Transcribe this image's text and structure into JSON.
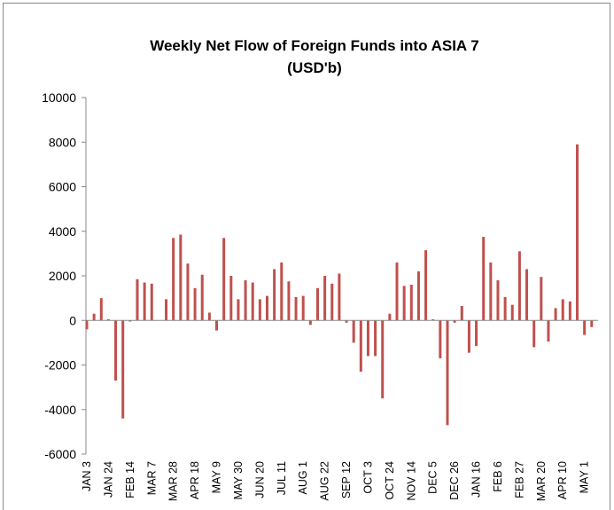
{
  "chart_data": {
    "type": "bar",
    "title": "Weekly Net Flow of Foreign Funds into ASIA 7",
    "subtitle": "(USD'b)",
    "color": "#c0504d",
    "categories": [
      "JAN 3",
      null,
      null,
      "JAN 24",
      null,
      null,
      "FEB 14",
      null,
      null,
      "MAR 7",
      null,
      null,
      "MAR 28",
      null,
      null,
      "APR 18",
      null,
      null,
      "MAY 9",
      null,
      null,
      "MAY 30",
      null,
      null,
      "JUN 20",
      null,
      null,
      "JUL 11",
      null,
      null,
      "AUG 1",
      null,
      null,
      "AUG 22",
      null,
      null,
      "SEP 12",
      null,
      null,
      "OCT 3",
      null,
      null,
      "OCT 24",
      null,
      null,
      "NOV 14",
      null,
      null,
      "DEC 5",
      null,
      null,
      "DEC 26",
      null,
      null,
      "JAN 16",
      null,
      null,
      "FEB 6",
      null,
      null,
      "FEB 27",
      null,
      null,
      "MAR 20",
      null,
      null,
      "APR 10",
      null,
      null,
      "MAY 1",
      null
    ],
    "values": [
      -400,
      300,
      1000,
      50,
      -2700,
      -4400,
      -50,
      1850,
      1700,
      1650,
      0,
      950,
      3700,
      3850,
      2550,
      1450,
      2050,
      350,
      -450,
      3700,
      2000,
      950,
      1800,
      1700,
      950,
      1100,
      2300,
      2600,
      1750,
      1050,
      1100,
      -200,
      1450,
      2000,
      1650,
      2100,
      -100,
      -1000,
      -2300,
      -1600,
      -1600,
      -3500,
      300,
      2600,
      1550,
      1600,
      2200,
      3150,
      50,
      -1700,
      -4700,
      -100,
      650,
      -1450,
      -1150,
      3750,
      2600,
      1800,
      1050,
      700,
      3100,
      2300,
      -1200,
      1950,
      -950,
      550,
      950,
      850,
      7900,
      -650,
      -300
    ],
    "ylim": [
      -6000,
      10000
    ],
    "yticks": [
      -6000,
      -4000,
      -2000,
      0,
      2000,
      4000,
      6000,
      8000,
      10000
    ]
  }
}
